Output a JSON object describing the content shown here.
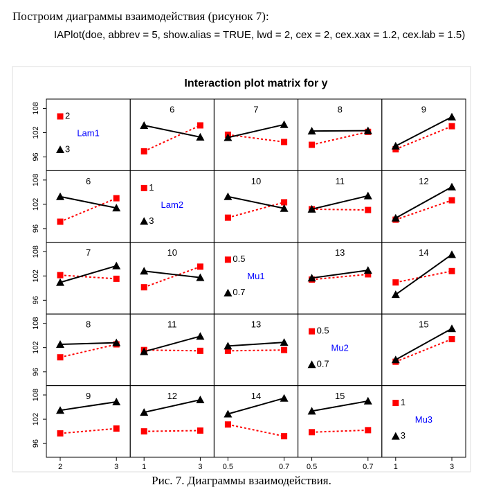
{
  "document": {
    "heading": "Построим диаграммы взаимодействия (рисунок 7):",
    "code": "IAPlot(doe, abbrev = 5, show.alias = TRUE, lwd = 2, cex = 2, cex.xax = 1.2, cex.lab = 1.5)",
    "caption": "Рис. 7. Диаграммы взаимодействия."
  },
  "chart_data": {
    "type": "interaction_matrix",
    "title": "Interaction plot matrix for y",
    "ylim": [
      92.6,
      110.3
    ],
    "yticks": [
      96,
      102,
      108
    ],
    "series_styles": [
      {
        "color": "#ff0000",
        "marker": "square",
        "dashed": true
      },
      {
        "color": "#000000",
        "marker": "triangle",
        "dashed": false
      }
    ],
    "factor_color": "#0000ff",
    "panels": [
      [
        {
          "name": "Lam1",
          "levels": [
            2,
            3
          ]
        },
        {
          "label": 6,
          "series": [
            {
              "values": [
                97.4,
                103.8
              ]
            },
            {
              "values": [
                103.8,
                100.9
              ]
            }
          ]
        },
        {
          "label": 7,
          "series": [
            {
              "values": [
                101.5,
                99.7
              ]
            },
            {
              "values": [
                100.8,
                104.0
              ]
            }
          ]
        },
        {
          "label": 8,
          "series": [
            {
              "values": [
                99.0,
                102.2
              ]
            },
            {
              "values": [
                102.4,
                102.5
              ]
            }
          ]
        },
        {
          "label": 9,
          "series": [
            {
              "values": [
                97.9,
                103.6
              ]
            },
            {
              "values": [
                98.7,
                105.9
              ]
            }
          ]
        }
      ],
      [
        {
          "label": 6,
          "series": [
            {
              "values": [
                97.7,
                103.5
              ]
            },
            {
              "values": [
                103.9,
                101.1
              ]
            }
          ]
        },
        {
          "name": "Lam2",
          "levels": [
            1,
            3
          ]
        },
        {
          "label": 10,
          "series": [
            {
              "values": [
                98.7,
                102.5
              ]
            },
            {
              "values": [
                103.9,
                101.0
              ]
            }
          ]
        },
        {
          "label": 11,
          "series": [
            {
              "values": [
                100.8,
                100.6
              ]
            },
            {
              "values": [
                100.8,
                104.1
              ]
            }
          ]
        },
        {
          "label": 12,
          "series": [
            {
              "values": [
                98.2,
                103.0
              ]
            },
            {
              "values": [
                98.6,
                106.3
              ]
            }
          ]
        }
      ],
      [
        {
          "label": 7,
          "series": [
            {
              "values": [
                102.2,
                101.3
              ]
            },
            {
              "values": [
                100.4,
                104.5
              ]
            }
          ]
        },
        {
          "label": 10,
          "series": [
            {
              "values": [
                99.2,
                104.3
              ]
            },
            {
              "values": [
                103.2,
                101.6
              ]
            }
          ]
        },
        {
          "name": "Mu1",
          "levels": [
            0.5,
            0.7
          ]
        },
        {
          "label": 13,
          "series": [
            {
              "values": [
                101.1,
                102.4
              ]
            },
            {
              "values": [
                101.5,
                103.4
              ]
            }
          ]
        },
        {
          "label": 14,
          "series": [
            {
              "values": [
                100.4,
                103.2
              ]
            },
            {
              "values": [
                97.4,
                107.3
              ]
            }
          ]
        }
      ],
      [
        {
          "label": 8,
          "series": [
            {
              "values": [
                99.6,
                102.8
              ]
            },
            {
              "values": [
                102.8,
                103.2
              ]
            }
          ]
        },
        {
          "label": 11,
          "series": [
            {
              "values": [
                101.4,
                101.2
              ]
            },
            {
              "values": [
                101.0,
                104.8
              ]
            }
          ]
        },
        {
          "label": 13,
          "series": [
            {
              "values": [
                101.2,
                101.4
              ]
            },
            {
              "values": [
                102.4,
                103.3
              ]
            }
          ]
        },
        {
          "name": "Mu2",
          "levels": [
            0.5,
            0.7
          ]
        },
        {
          "label": 15,
          "series": [
            {
              "values": [
                98.5,
                104.1
              ]
            },
            {
              "values": [
                99.0,
                106.7
              ]
            }
          ]
        }
      ],
      [
        {
          "label": 9,
          "series": [
            {
              "values": [
                98.5,
                99.7
              ]
            },
            {
              "values": [
                104.2,
                106.3
              ]
            }
          ]
        },
        {
          "label": 12,
          "series": [
            {
              "values": [
                99.0,
                99.2
              ]
            },
            {
              "values": [
                103.7,
                106.8
              ]
            }
          ]
        },
        {
          "label": 14,
          "series": [
            {
              "values": [
                100.7,
                97.8
              ]
            },
            {
              "values": [
                103.3,
                107.2
              ]
            }
          ]
        },
        {
          "label": 15,
          "series": [
            {
              "values": [
                98.8,
                99.3
              ]
            },
            {
              "values": [
                104.0,
                106.5
              ]
            }
          ]
        },
        {
          "name": "Mu3",
          "levels": [
            1,
            3
          ]
        }
      ]
    ]
  }
}
